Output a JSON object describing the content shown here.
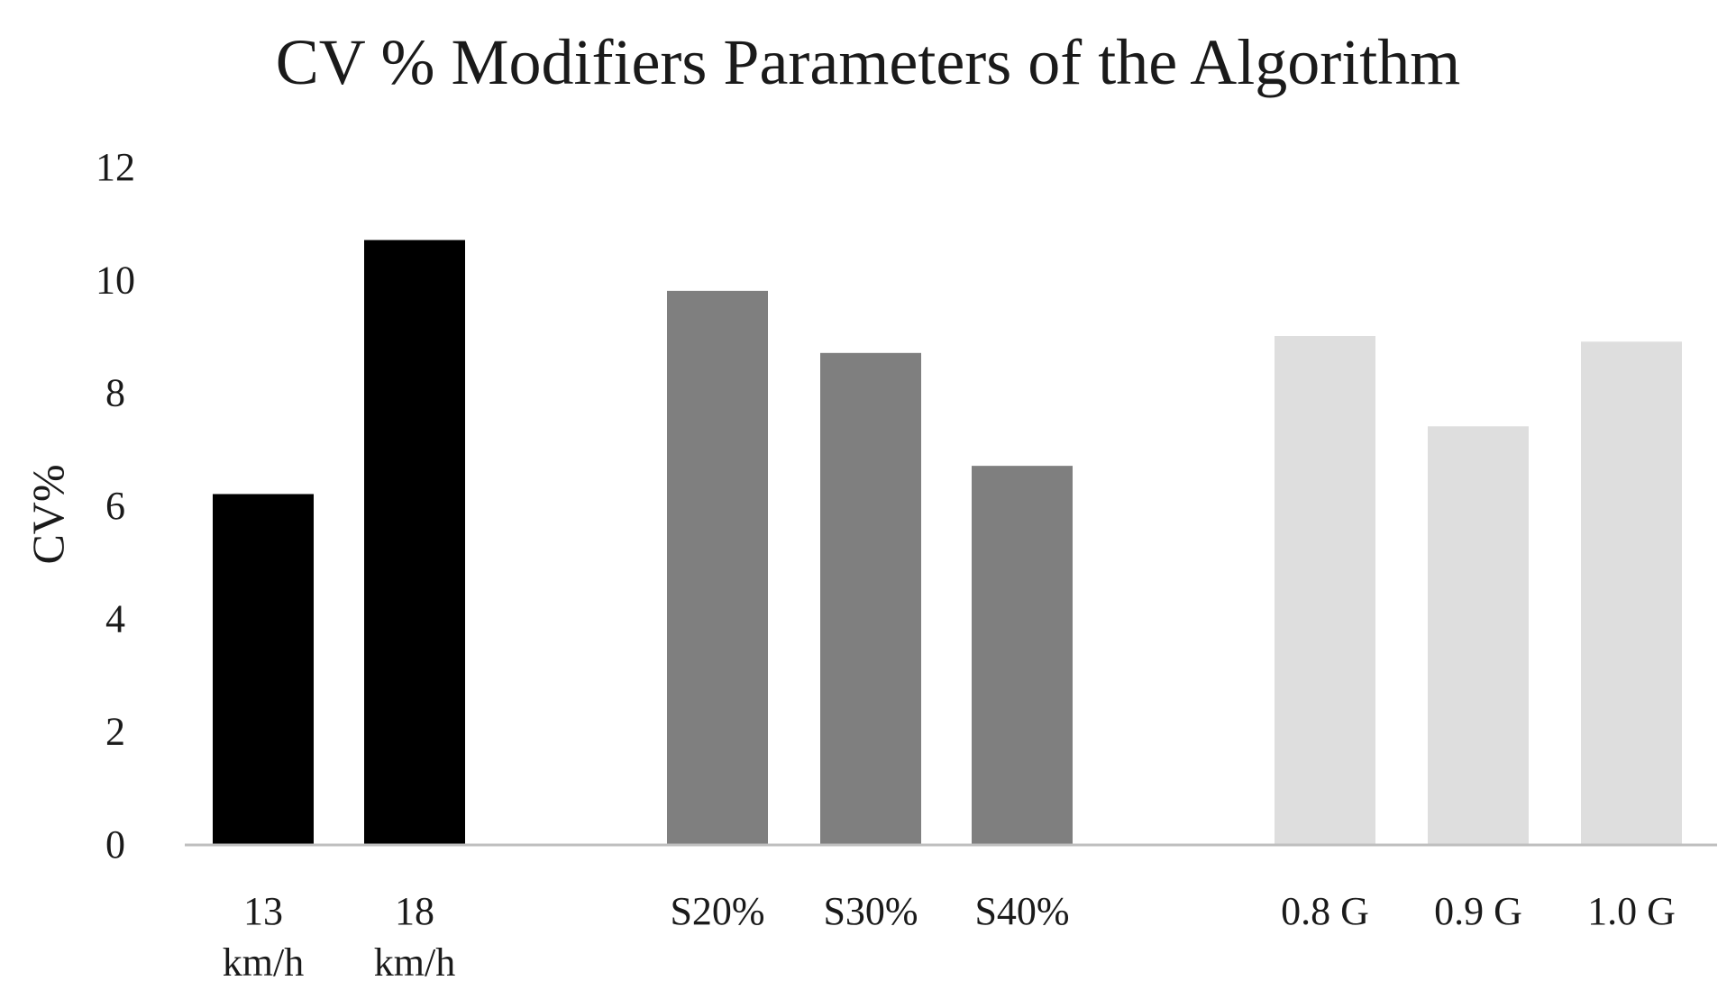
{
  "chart_data": {
    "type": "bar",
    "title": "CV % Modifiers Parameters of the Algorithm",
    "xlabel": "",
    "ylabel": "CV%",
    "ylim": [
      0,
      12
    ],
    "yticks": [
      0,
      2,
      4,
      6,
      8,
      10,
      12
    ],
    "grid": false,
    "legend": "none",
    "groups": [
      {
        "color": "#000000",
        "categories": [
          [
            "13",
            "km/h"
          ],
          [
            "18",
            "km/h"
          ]
        ],
        "values": [
          6.2,
          10.7
        ]
      },
      {
        "color": "#7f7f7f",
        "categories": [
          [
            "S20%"
          ],
          [
            "S30%"
          ],
          [
            "S40%"
          ]
        ],
        "values": [
          9.8,
          8.7,
          6.7
        ]
      },
      {
        "color": "#dedede",
        "categories": [
          [
            "0.8 G"
          ],
          [
            "0.9 G"
          ],
          [
            "1.0 G"
          ]
        ],
        "values": [
          9.0,
          7.4,
          8.9
        ]
      }
    ]
  }
}
